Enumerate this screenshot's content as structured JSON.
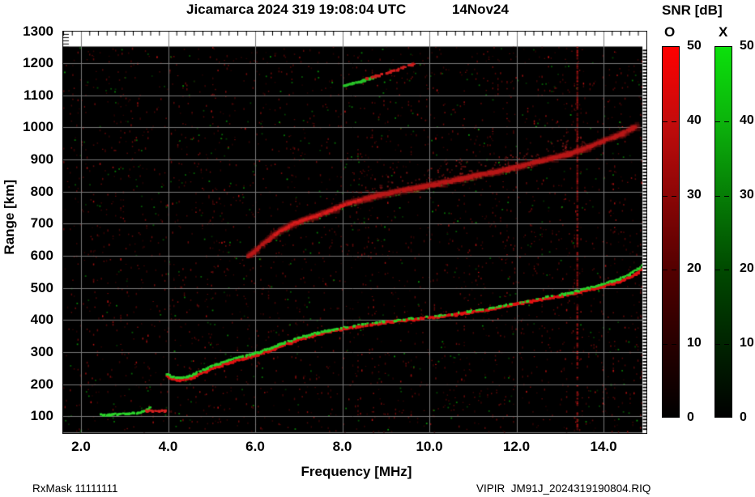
{
  "title": {
    "main": "Jicamarca 2024 319 19:08:04 UTC",
    "date": "14Nov24"
  },
  "footer": {
    "left": "RxMask 11111111",
    "right": "VIPIR  JM91J_2024319190804.RIQ"
  },
  "colors": {
    "o_mode": "#ff0000",
    "x_mode": "#0ce00c",
    "grid": "#7a7a7a",
    "plot_background": "#000000",
    "page_background": "#ffffff"
  },
  "chart_data": {
    "type": "heatmap",
    "title": "Jicamarca 2024 319 19:08:04 UTC",
    "subtitle": "14Nov24",
    "xlabel": "Frequency [MHz]",
    "ylabel": "Range [km]",
    "xlim": [
      1.6,
      15.0
    ],
    "ylim": [
      50,
      1300
    ],
    "grid": true,
    "x_ticks": [
      2,
      4,
      6,
      8,
      10,
      12,
      14
    ],
    "x_tick_labels": [
      "2.0",
      "4.0",
      "6.0",
      "8.0",
      "10.0",
      "12.0",
      "14.0"
    ],
    "y_ticks": [
      1300,
      1200,
      1100,
      1000,
      900,
      800,
      700,
      600,
      500,
      400,
      300,
      200,
      100
    ],
    "colorbar": {
      "title": "SNR [dB]",
      "min": 0,
      "max": 50,
      "ticks": [
        50,
        40,
        30,
        20,
        10,
        0
      ],
      "o_label": "O",
      "x_label": "X"
    },
    "rfi_frequencies_mhz": [
      13.4
    ],
    "noise_seed": 20241114,
    "traces": [
      {
        "name": "E-layer-X",
        "mode": "X",
        "color": "#2bd42b",
        "width": 3,
        "prob": 0.92,
        "points": [
          [
            2.45,
            104
          ],
          [
            2.62,
            105
          ],
          [
            2.8,
            106
          ],
          [
            3.0,
            107
          ],
          [
            3.18,
            109
          ],
          [
            3.32,
            111
          ],
          [
            3.45,
            115
          ],
          [
            3.52,
            122
          ],
          [
            3.6,
            127
          ]
        ]
      },
      {
        "name": "E-layer-O",
        "mode": "O",
        "color": "#d42020",
        "width": 3,
        "prob": 0.9,
        "points": [
          [
            3.5,
            116
          ],
          [
            3.65,
            117
          ],
          [
            3.82,
            117
          ],
          [
            3.97,
            116
          ]
        ]
      },
      {
        "name": "F-layer-O",
        "mode": "O",
        "color": "#e01212",
        "width": 3.5,
        "prob": 0.97,
        "points": [
          [
            3.98,
            224
          ],
          [
            4.1,
            216
          ],
          [
            4.25,
            211
          ],
          [
            4.45,
            214
          ],
          [
            4.65,
            226
          ],
          [
            4.85,
            238
          ],
          [
            5.05,
            250
          ],
          [
            5.3,
            262
          ],
          [
            5.6,
            274
          ],
          [
            5.9,
            284
          ],
          [
            6.1,
            292
          ],
          [
            6.4,
            307
          ],
          [
            6.7,
            323
          ],
          [
            7.0,
            338
          ],
          [
            7.35,
            351
          ],
          [
            7.7,
            363
          ],
          [
            8.0,
            371
          ],
          [
            8.6,
            384
          ],
          [
            9.0,
            392
          ],
          [
            9.5,
            400
          ],
          [
            10.1,
            408
          ],
          [
            10.6,
            417
          ],
          [
            11.1,
            427
          ],
          [
            11.6,
            438
          ],
          [
            12.0,
            450
          ],
          [
            12.5,
            462
          ],
          [
            13.2,
            478
          ],
          [
            13.9,
            501
          ],
          [
            14.3,
            516
          ],
          [
            14.6,
            532
          ],
          [
            14.82,
            549
          ],
          [
            14.93,
            562
          ]
        ]
      },
      {
        "name": "F-layer-X",
        "mode": "X",
        "color": "#2bd42b",
        "width": 3,
        "prob_zones": [
          [
            3.9,
            7.9,
            0.95
          ],
          [
            7.9,
            13.1,
            0.38
          ],
          [
            13.1,
            15.0,
            0.9
          ]
        ],
        "points": [
          [
            3.96,
            232
          ],
          [
            4.1,
            224
          ],
          [
            4.25,
            219
          ],
          [
            4.45,
            222
          ],
          [
            4.65,
            234
          ],
          [
            4.85,
            246
          ],
          [
            5.05,
            258
          ],
          [
            5.3,
            270
          ],
          [
            5.6,
            282
          ],
          [
            5.9,
            292
          ],
          [
            6.1,
            300
          ],
          [
            6.4,
            314
          ],
          [
            6.7,
            330
          ],
          [
            7.0,
            344
          ],
          [
            7.35,
            357
          ],
          [
            7.7,
            368
          ],
          [
            8.0,
            376
          ],
          [
            8.6,
            388
          ],
          [
            9.0,
            395
          ],
          [
            9.5,
            403
          ],
          [
            10.1,
            411
          ],
          [
            10.6,
            420
          ],
          [
            11.1,
            430
          ],
          [
            11.6,
            441
          ],
          [
            12.0,
            453
          ],
          [
            12.5,
            466
          ],
          [
            13.2,
            483
          ],
          [
            13.9,
            508
          ],
          [
            14.3,
            524
          ],
          [
            14.6,
            541
          ],
          [
            14.82,
            560
          ],
          [
            14.93,
            574
          ]
        ]
      },
      {
        "name": "second-hop-O",
        "mode": "O",
        "color": "rgba(185,24,24,0.8)",
        "width": 4.5,
        "prob": 0.9,
        "soft": true,
        "points": [
          [
            5.85,
            597
          ],
          [
            6.1,
            626
          ],
          [
            6.45,
            666
          ],
          [
            6.9,
            701
          ],
          [
            7.5,
            728
          ],
          [
            8.1,
            761
          ],
          [
            8.8,
            787
          ],
          [
            9.4,
            803
          ],
          [
            10.2,
            824
          ],
          [
            10.9,
            844
          ],
          [
            11.7,
            866
          ],
          [
            12.4,
            889
          ],
          [
            13.2,
            916
          ],
          [
            13.9,
            951
          ],
          [
            14.4,
            978
          ],
          [
            14.82,
            1007
          ]
        ]
      },
      {
        "name": "second-hop-core-O",
        "mode": "O",
        "color": "#d81c1c",
        "width": 3,
        "prob": 0.8,
        "points": [
          [
            6.45,
            666
          ],
          [
            6.9,
            701
          ],
          [
            7.5,
            728
          ],
          [
            8.1,
            761
          ],
          [
            8.45,
            776
          ]
        ]
      },
      {
        "name": "upper-streak-X",
        "mode": "X",
        "color": "#28c428",
        "width": 3.5,
        "prob": 0.85,
        "points": [
          [
            8.05,
            1128
          ],
          [
            8.3,
            1138
          ],
          [
            8.55,
            1148
          ],
          [
            8.78,
            1157
          ]
        ]
      },
      {
        "name": "upper-streak-O",
        "mode": "O",
        "color": "#cc1d1d",
        "width": 3.5,
        "prob": 0.82,
        "points": [
          [
            8.55,
            1150
          ],
          [
            8.9,
            1164
          ],
          [
            9.2,
            1177
          ],
          [
            9.5,
            1190
          ],
          [
            9.7,
            1201
          ]
        ]
      }
    ],
    "clouds": [
      {
        "name": "spread-f-red",
        "along": "second-hop-O",
        "f_range": [
          8.2,
          13.6
        ],
        "km_offset": [
          0,
          75
        ],
        "count": 270,
        "color": [
          150,
          25,
          25
        ],
        "size": 2
      },
      {
        "name": "second-hop-green-speckle",
        "along": "second-hop-O",
        "f_range": [
          6.2,
          12.6
        ],
        "km_offset": [
          -8,
          8
        ],
        "count": 70,
        "color": [
          30,
          160,
          30
        ],
        "size": 2
      }
    ]
  }
}
